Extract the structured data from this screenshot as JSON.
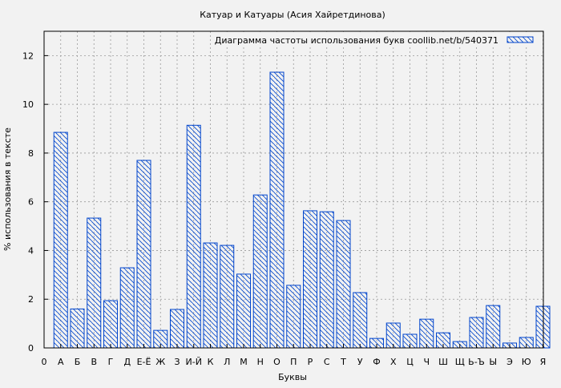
{
  "chart_data": {
    "type": "bar",
    "title": "Катуар и Катуары (Асия Хайретдинова)",
    "xlabel": "Буквы",
    "ylabel": "% использования в тексте",
    "legend": {
      "label": "Диаграмма частоты использования букв  coollib.net/b/540371",
      "placement": "top-right"
    },
    "ylim": [
      0,
      13
    ],
    "yticks": [
      0,
      2,
      4,
      6,
      8,
      10,
      12
    ],
    "x_origin_label": "0",
    "grid": true,
    "bar_color": "#0044cc",
    "bar_fill": "hatched",
    "categories": [
      "А",
      "Б",
      "В",
      "Г",
      "Д",
      "Е-Ё",
      "Ж",
      "З",
      "И-Й",
      "К",
      "Л",
      "М",
      "Н",
      "О",
      "П",
      "Р",
      "С",
      "Т",
      "У",
      "Ф",
      "Х",
      "Ц",
      "Ч",
      "Ш",
      "Щ",
      "Ь-Ъ",
      "Ы",
      "Э",
      "Ю",
      "Я"
    ],
    "values": [
      8.85,
      1.6,
      5.33,
      1.94,
      3.29,
      7.7,
      0.72,
      1.58,
      9.14,
      4.31,
      4.21,
      3.03,
      6.28,
      11.32,
      2.57,
      5.63,
      5.59,
      5.23,
      2.27,
      0.39,
      1.02,
      0.56,
      1.18,
      0.62,
      0.26,
      1.25,
      1.74,
      0.2,
      0.43,
      1.71
    ]
  }
}
